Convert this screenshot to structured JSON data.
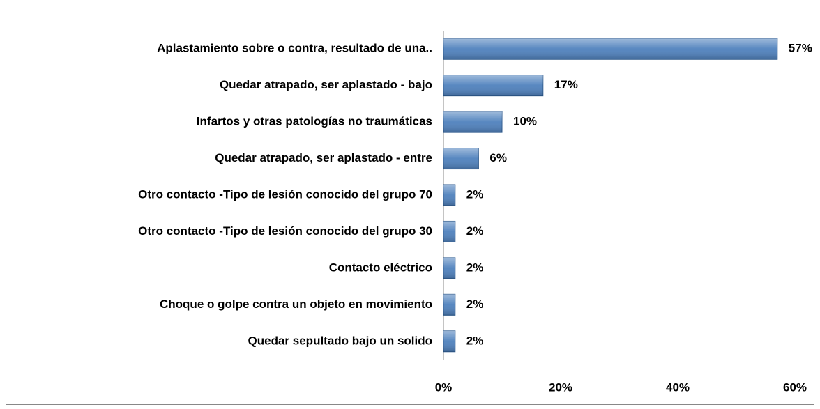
{
  "chart_data": {
    "type": "bar",
    "orientation": "horizontal",
    "categories": [
      "Aplastamiento sobre o contra, resultado de una..",
      "Quedar atrapado, ser aplastado - bajo",
      "Infartos y otras patologías no traumáticas",
      "Quedar atrapado, ser aplastado - entre",
      "Otro contacto -Tipo de lesión conocido del grupo 70",
      "Otro contacto -Tipo de lesión conocido del grupo 30",
      "Contacto eléctrico",
      "Choque o golpe contra un objeto en movimiento",
      "Quedar sepultado bajo un solido"
    ],
    "values": [
      57,
      17,
      10,
      6,
      2,
      2,
      2,
      2,
      2
    ],
    "value_labels": [
      "57%",
      "17%",
      "10%",
      "6%",
      "2%",
      "2%",
      "2%",
      "2%",
      "2%"
    ],
    "color": "#4f81bd",
    "xlim": [
      0,
      60
    ],
    "xticks": [
      {
        "value": 0,
        "label": "0%"
      },
      {
        "value": 20,
        "label": "20%"
      },
      {
        "value": 40,
        "label": "40%"
      },
      {
        "value": 60,
        "label": "60%"
      }
    ],
    "grid": false
  }
}
